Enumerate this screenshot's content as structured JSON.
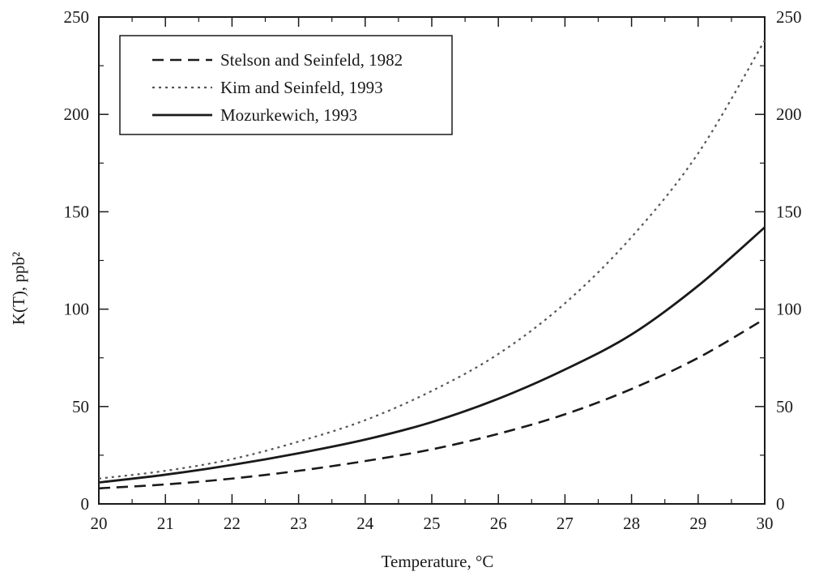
{
  "chart_data": {
    "type": "line",
    "title": "",
    "xlabel": "Temperature, °C",
    "ylabel": "K(T), ppb²",
    "xlim": [
      20,
      30
    ],
    "ylim": [
      0,
      250
    ],
    "x_ticks": [
      20,
      21,
      22,
      23,
      24,
      25,
      26,
      27,
      28,
      29,
      30
    ],
    "y_ticks": [
      0,
      50,
      100,
      150,
      200,
      250
    ],
    "right_axis_labels": true,
    "grid": false,
    "legend_position": "top-left",
    "x": [
      20,
      21,
      22,
      23,
      24,
      25,
      26,
      27,
      28,
      29,
      30
    ],
    "series": [
      {
        "name": "Stelson and Seinfeld, 1982",
        "style": "dashed",
        "color": "#1a1a1a",
        "values": [
          8,
          10,
          13,
          17,
          22,
          28,
          36,
          46,
          59,
          75,
          95
        ]
      },
      {
        "name": "Kim and Seinfeld, 1993",
        "style": "dotted",
        "color": "#555555",
        "values": [
          13,
          17,
          23,
          32,
          43,
          58,
          77,
          103,
          137,
          180,
          238
        ]
      },
      {
        "name": "Mozurkewich, 1993",
        "style": "solid",
        "color": "#1a1a1a",
        "values": [
          11,
          15,
          20,
          26,
          33,
          42,
          54,
          69,
          87,
          112,
          142
        ]
      }
    ]
  }
}
